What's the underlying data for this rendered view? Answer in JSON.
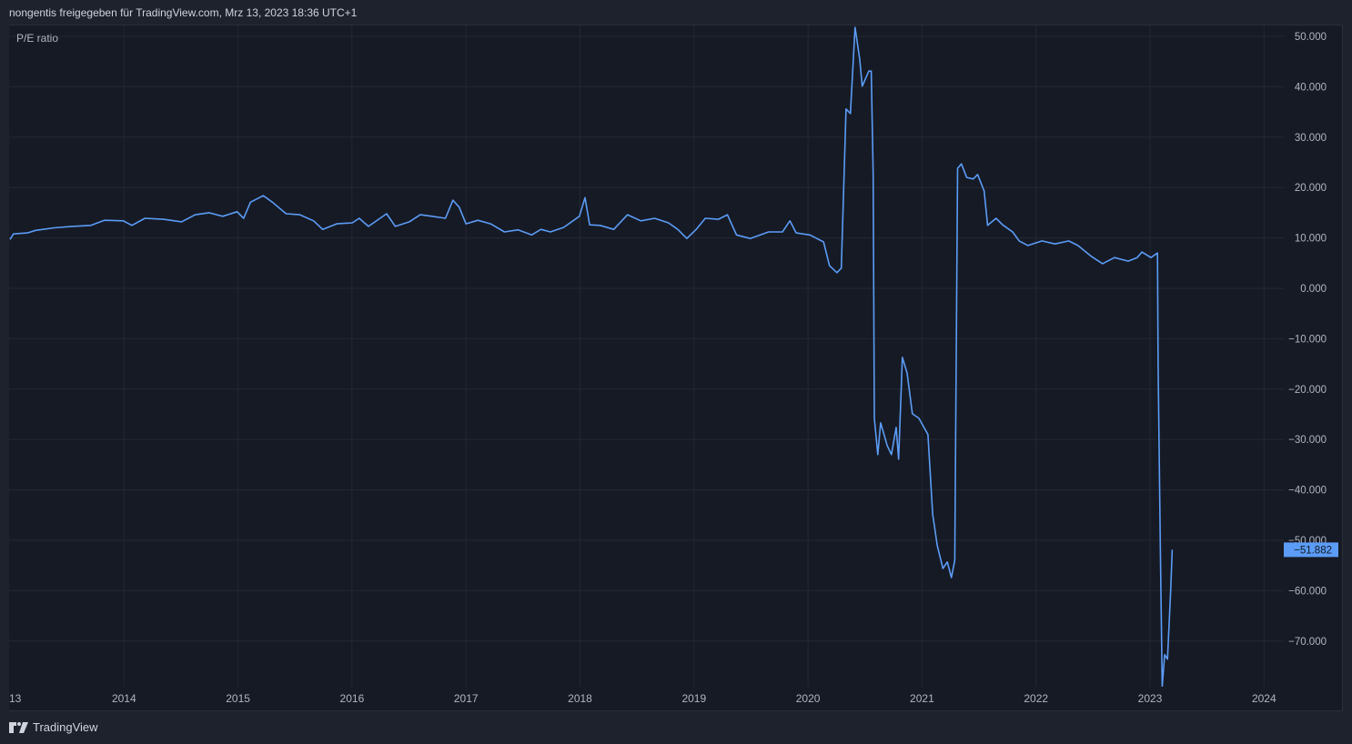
{
  "header": {
    "text": "nongentis freigegeben für TradingView.com, Mrz 13, 2023 18:36 UTC+1"
  },
  "footer": {
    "brand": "TradingView",
    "logo_icon": "tradingview-logo-icon"
  },
  "colors": {
    "line": "#5b9cf6",
    "background": "#161a25",
    "grid": "#242832",
    "last_value_badge": "#5b9cf6"
  },
  "chart_data": {
    "type": "line",
    "title": "P/E ratio",
    "xlabel": "",
    "ylabel": "",
    "xlim": [
      "2013-01-01",
      "2024-03-01"
    ],
    "ylim": [
      -79,
      52.3
    ],
    "grid": true,
    "x_ticks": [
      "13",
      "2014",
      "2015",
      "2016",
      "2017",
      "2018",
      "2019",
      "2020",
      "2021",
      "2022",
      "2023",
      "2024"
    ],
    "y_ticks": [
      "50.000",
      "40.000",
      "30.000",
      "20.000",
      "10.000",
      "0.000",
      "−10.000",
      "−20.000",
      "−30.000",
      "−40.000",
      "−50.000",
      "−60.000",
      "−70.000"
    ],
    "y_tick_values": [
      50,
      40,
      30,
      20,
      10,
      0,
      -10,
      -20,
      -30,
      -40,
      -50,
      -60,
      -70
    ],
    "last_value_label": "−51.882",
    "last_value": -51.882,
    "series": [
      {
        "points": [
          [
            "2013-01-01",
            9.7
          ],
          [
            "2013-01-12",
            10.8
          ],
          [
            "2013-02-26",
            11.0
          ],
          [
            "2013-03-24",
            11.5
          ],
          [
            "2013-05-22",
            12.0
          ],
          [
            "2013-07-19",
            12.3
          ],
          [
            "2013-09-17",
            12.5
          ],
          [
            "2013-10-30",
            13.5
          ],
          [
            "2013-12-30",
            13.4
          ],
          [
            "2014-01-26",
            12.5
          ],
          [
            "2014-03-09",
            13.9
          ],
          [
            "2014-05-07",
            13.7
          ],
          [
            "2014-07-04",
            13.2
          ],
          [
            "2014-08-17",
            14.6
          ],
          [
            "2014-09-30",
            15.0
          ],
          [
            "2014-11-13",
            14.3
          ],
          [
            "2014-12-29",
            15.2
          ],
          [
            "2015-01-19",
            13.9
          ],
          [
            "2015-02-10",
            17.1
          ],
          [
            "2015-03-23",
            18.4
          ],
          [
            "2015-04-21",
            17.1
          ],
          [
            "2015-06-04",
            14.8
          ],
          [
            "2015-07-18",
            14.6
          ],
          [
            "2015-08-31",
            13.4
          ],
          [
            "2015-09-29",
            11.7
          ],
          [
            "2015-11-13",
            12.8
          ],
          [
            "2016-01-02",
            13.0
          ],
          [
            "2016-01-24",
            13.9
          ],
          [
            "2016-02-23",
            12.3
          ],
          [
            "2016-04-21",
            14.8
          ],
          [
            "2016-05-19",
            12.3
          ],
          [
            "2016-07-03",
            13.2
          ],
          [
            "2016-08-07",
            14.6
          ],
          [
            "2016-09-14",
            14.3
          ],
          [
            "2016-10-27",
            13.9
          ],
          [
            "2016-11-20",
            17.5
          ],
          [
            "2016-12-10",
            16.1
          ],
          [
            "2017-01-01",
            12.8
          ],
          [
            "2017-02-08",
            13.5
          ],
          [
            "2017-03-21",
            12.8
          ],
          [
            "2017-05-04",
            11.2
          ],
          [
            "2017-06-17",
            11.6
          ],
          [
            "2017-07-30",
            10.6
          ],
          [
            "2017-08-29",
            11.7
          ],
          [
            "2017-09-28",
            11.2
          ],
          [
            "2017-11-10",
            12.1
          ],
          [
            "2017-12-30",
            14.3
          ],
          [
            "2018-01-17",
            18.0
          ],
          [
            "2018-02-01",
            12.6
          ],
          [
            "2018-03-06",
            12.5
          ],
          [
            "2018-04-19",
            11.7
          ],
          [
            "2018-06-02",
            14.6
          ],
          [
            "2018-07-15",
            13.4
          ],
          [
            "2018-08-28",
            13.9
          ],
          [
            "2018-10-11",
            13.0
          ],
          [
            "2018-11-10",
            11.7
          ],
          [
            "2018-12-09",
            9.9
          ],
          [
            "2019-01-08",
            11.7
          ],
          [
            "2019-02-06",
            13.9
          ],
          [
            "2019-03-20",
            13.7
          ],
          [
            "2019-04-18",
            14.6
          ],
          [
            "2019-05-17",
            10.6
          ],
          [
            "2019-06-30",
            9.9
          ],
          [
            "2019-08-28",
            11.2
          ],
          [
            "2019-10-11",
            11.2
          ],
          [
            "2019-11-04",
            13.4
          ],
          [
            "2019-11-24",
            11.0
          ],
          [
            "2020-01-07",
            10.6
          ],
          [
            "2020-02-20",
            9.2
          ],
          [
            "2020-03-10",
            4.5
          ],
          [
            "2020-04-03",
            3.1
          ],
          [
            "2020-04-17",
            4.0
          ],
          [
            "2020-05-02",
            35.6
          ],
          [
            "2020-05-16",
            34.7
          ],
          [
            "2020-05-31",
            51.8
          ],
          [
            "2020-06-15",
            45.5
          ],
          [
            "2020-06-23",
            40.1
          ],
          [
            "2020-07-14",
            43.1
          ],
          [
            "2020-07-22",
            43.1
          ],
          [
            "2020-07-28",
            22.9
          ],
          [
            "2020-08-01",
            -25.8
          ],
          [
            "2020-08-12",
            -33.0
          ],
          [
            "2020-08-21",
            -26.7
          ],
          [
            "2020-09-11",
            -31.2
          ],
          [
            "2020-09-25",
            -33.0
          ],
          [
            "2020-10-10",
            -27.6
          ],
          [
            "2020-10-18",
            -33.9
          ],
          [
            "2020-10-30",
            -13.7
          ],
          [
            "2020-11-14",
            -16.8
          ],
          [
            "2020-12-01",
            -24.9
          ],
          [
            "2020-12-22",
            -25.8
          ],
          [
            "2021-01-20",
            -29.0
          ],
          [
            "2021-02-04",
            -44.8
          ],
          [
            "2021-02-19",
            -51.1
          ],
          [
            "2021-03-09",
            -55.6
          ],
          [
            "2021-03-23",
            -54.3
          ],
          [
            "2021-04-05",
            -57.4
          ],
          [
            "2021-04-16",
            -54.0
          ],
          [
            "2021-04-25",
            23.8
          ],
          [
            "2021-05-07",
            24.7
          ],
          [
            "2021-05-24",
            22.0
          ],
          [
            "2021-06-14",
            21.7
          ],
          [
            "2021-06-28",
            22.6
          ],
          [
            "2021-07-19",
            19.3
          ],
          [
            "2021-07-30",
            12.5
          ],
          [
            "2021-08-26",
            13.9
          ],
          [
            "2021-09-16",
            12.6
          ],
          [
            "2021-10-18",
            11.2
          ],
          [
            "2021-11-08",
            9.4
          ],
          [
            "2021-12-06",
            8.5
          ],
          [
            "2022-01-20",
            9.4
          ],
          [
            "2022-03-03",
            8.8
          ],
          [
            "2022-04-16",
            9.4
          ],
          [
            "2022-05-15",
            8.5
          ],
          [
            "2022-06-28",
            6.3
          ],
          [
            "2022-08-02",
            4.9
          ],
          [
            "2022-09-09",
            6.1
          ],
          [
            "2022-10-23",
            5.4
          ],
          [
            "2022-11-21",
            6.1
          ],
          [
            "2022-12-06",
            7.2
          ],
          [
            "2023-01-04",
            6.1
          ],
          [
            "2023-01-25",
            7.0
          ],
          [
            "2023-01-27",
            -15.0
          ],
          [
            "2023-02-03",
            -51.0
          ],
          [
            "2023-02-09",
            -79.0
          ],
          [
            "2023-02-17",
            -72.7
          ],
          [
            "2023-02-26",
            -73.6
          ],
          [
            "2023-03-08",
            -60.0
          ],
          [
            "2023-03-13",
            -51.882
          ]
        ]
      }
    ]
  }
}
